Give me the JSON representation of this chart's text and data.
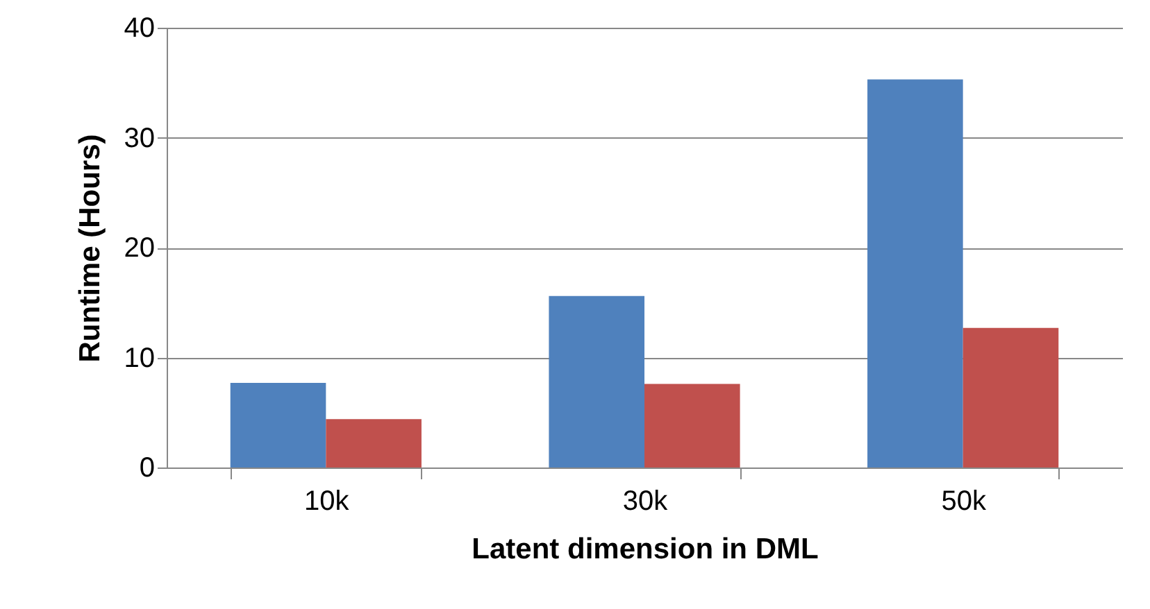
{
  "chart_data": {
    "type": "bar",
    "xlabel": "Latent dimension in DML",
    "ylabel": "Runtime (Hours)",
    "categories": [
      "10k",
      "30k",
      "50k"
    ],
    "series": [
      {
        "color": "#4f81bd",
        "values": [
          7.7,
          15.6,
          35.3
        ]
      },
      {
        "color": "#c0504d",
        "values": [
          4.4,
          7.6,
          12.7
        ]
      }
    ],
    "ylim": [
      0,
      40
    ],
    "yticks": [
      0,
      10,
      20,
      30,
      40
    ],
    "grid": "y"
  }
}
